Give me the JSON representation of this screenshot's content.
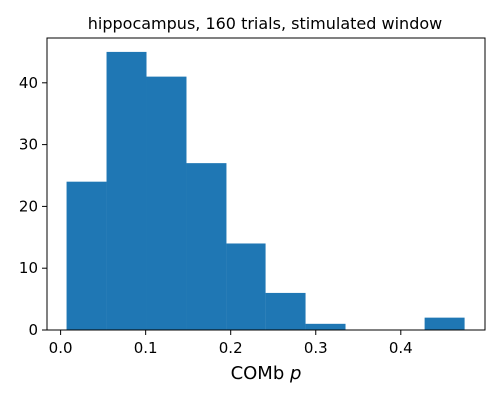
{
  "chart_data": {
    "type": "bar",
    "subtype": "histogram",
    "title": "hippocampus, 160 trials, stimulated window",
    "xlabel_main": "COMb ",
    "xlabel_var": "p",
    "ylabel": "",
    "bins": [
      {
        "x0": 0.007,
        "x1": 0.054,
        "count": 24
      },
      {
        "x0": 0.054,
        "x1": 0.101,
        "count": 45
      },
      {
        "x0": 0.101,
        "x1": 0.148,
        "count": 41
      },
      {
        "x0": 0.148,
        "x1": 0.195,
        "count": 27
      },
      {
        "x0": 0.195,
        "x1": 0.241,
        "count": 14
      },
      {
        "x0": 0.241,
        "x1": 0.288,
        "count": 6
      },
      {
        "x0": 0.288,
        "x1": 0.335,
        "count": 1
      },
      {
        "x0": 0.335,
        "x1": 0.382,
        "count": 0
      },
      {
        "x0": 0.382,
        "x1": 0.428,
        "count": 0
      },
      {
        "x0": 0.428,
        "x1": 0.475,
        "count": 2
      }
    ],
    "xlim": [
      -0.016,
      0.499
    ],
    "ylim": [
      0,
      47.25
    ],
    "xticks": [
      "0.0",
      "0.1",
      "0.2",
      "0.3",
      "0.4"
    ],
    "xtick_values": [
      0.0,
      0.1,
      0.2,
      0.3,
      0.4
    ],
    "yticks": [
      "0",
      "10",
      "20",
      "30",
      "40"
    ],
    "ytick_values": [
      0,
      10,
      20,
      30,
      40
    ],
    "bar_color": "#1f77b4",
    "grid": false
  }
}
